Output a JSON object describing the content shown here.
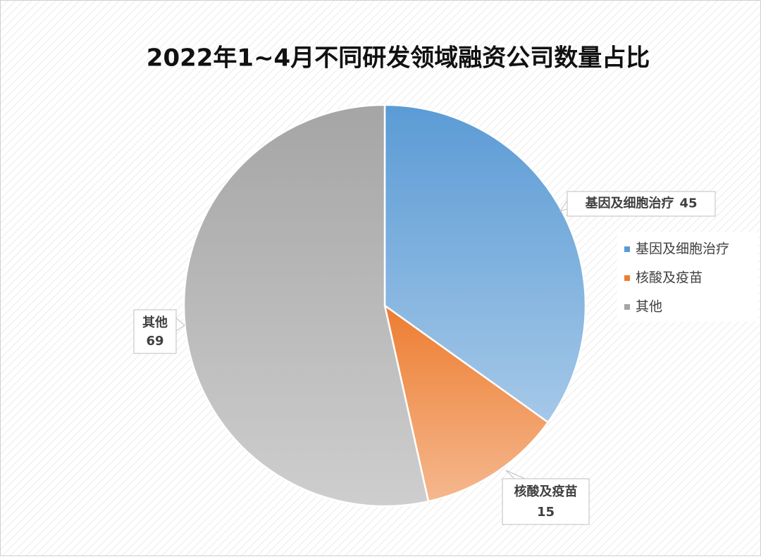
{
  "chart_data": {
    "type": "pie",
    "title": "2022年1~4月不同研发领域融资公司数量占比",
    "categories": [
      "基因及细胞治疗",
      "核酸及疫苗",
      "其他"
    ],
    "values": [
      45,
      15,
      69
    ],
    "colors": [
      "#5b9bd5",
      "#ed7d31",
      "#a5a5a5"
    ],
    "legend": "right"
  }
}
